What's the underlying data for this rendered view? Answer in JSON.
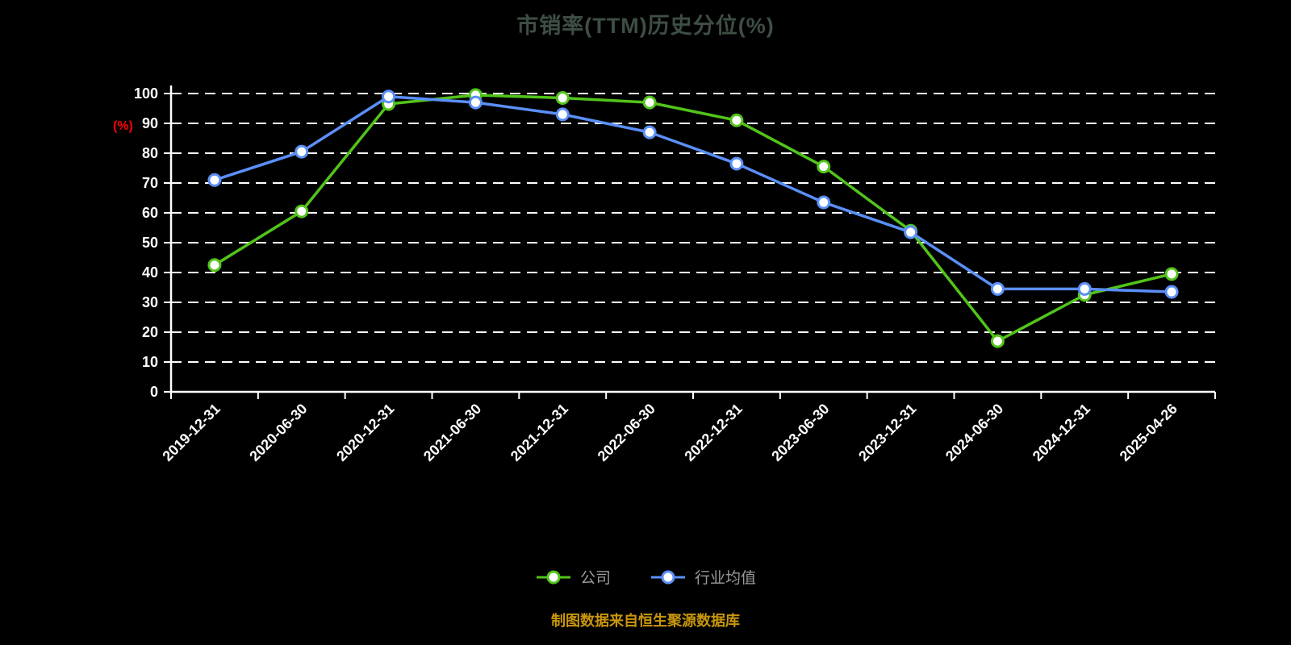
{
  "title": "市销率(TTM)历史分位(%)",
  "y_axis_unit": "(%)",
  "footer": "制图数据来自恒生聚源数据库",
  "colors": {
    "background": "#000000",
    "title": "#3e4e44",
    "y_axis_unit": "#ff0000",
    "axis": "#ffffff",
    "grid": "#ffffff",
    "tick_label": "#ffffff",
    "legend_label": "#9a9a9a",
    "footer": "#c9960c",
    "series_company": "#52c41a",
    "series_industry": "#5b8ff9",
    "marker_fill": "#ffffff"
  },
  "chart_data": {
    "type": "line",
    "title": "市销率(TTM)历史分位(%)",
    "xlabel": "",
    "ylabel": "(%)",
    "ylim": [
      0,
      100
    ],
    "ytick_step": 10,
    "grid": "horizontal-dashed",
    "legend_position": "bottom",
    "categories": [
      "2019-12-31",
      "2020-06-30",
      "2020-12-31",
      "2021-06-30",
      "2021-12-31",
      "2022-06-30",
      "2022-12-31",
      "2023-06-30",
      "2023-12-31",
      "2024-06-30",
      "2024-12-31",
      "2025-04-26"
    ],
    "series": [
      {
        "name": "公司",
        "color": "#52c41a",
        "values": [
          42.5,
          60.5,
          96.5,
          99.5,
          98.5,
          97,
          91,
          75.5,
          54,
          17,
          32.5,
          39.5
        ]
      },
      {
        "name": "行业均值",
        "color": "#5b8ff9",
        "values": [
          71,
          80.5,
          99,
          97,
          93,
          87,
          76.5,
          63.5,
          53.5,
          34.5,
          34.5,
          33.5
        ]
      }
    ]
  }
}
